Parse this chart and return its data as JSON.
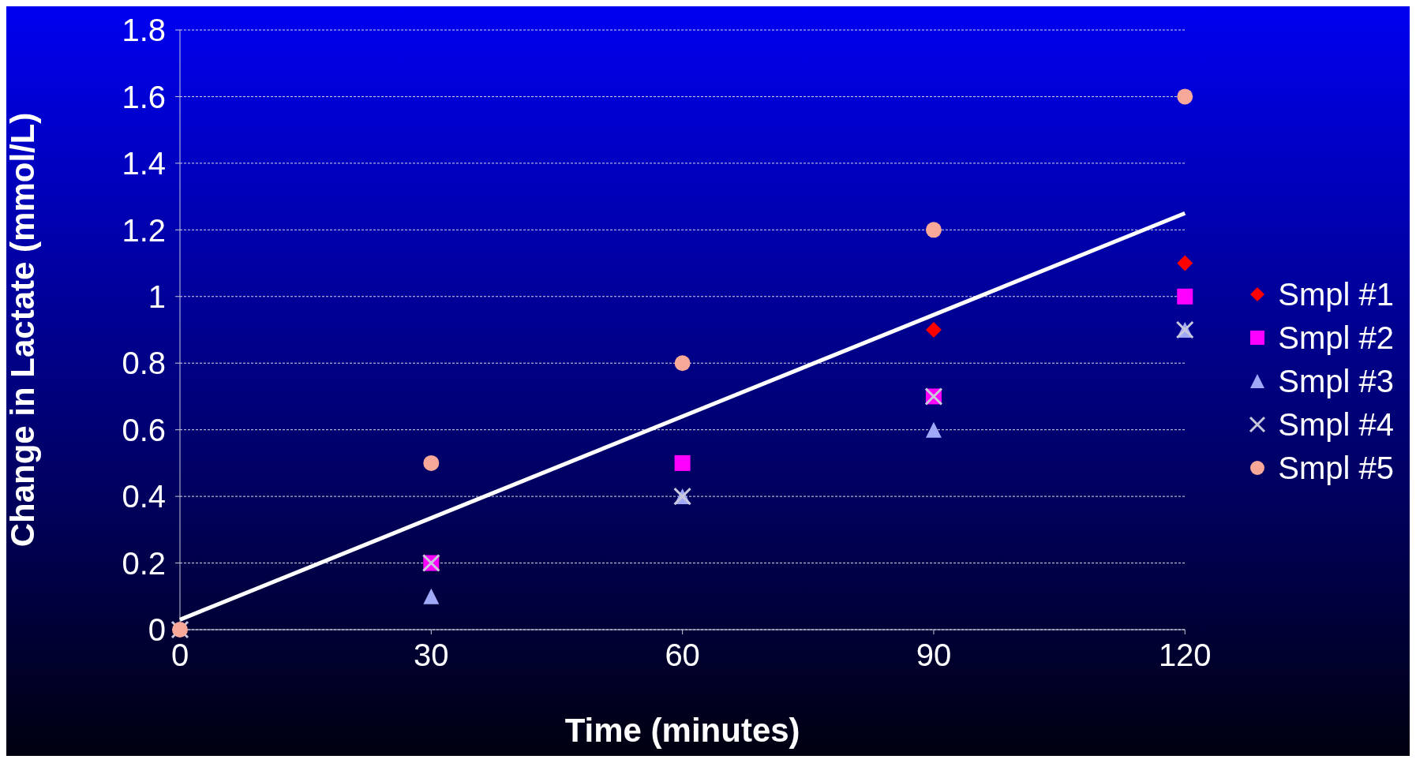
{
  "chart_data": {
    "type": "scatter",
    "xlabel": "Time (minutes)",
    "ylabel": "Change in Lactate (mmol/L)",
    "xlim": [
      0,
      120
    ],
    "xticks": [
      0,
      30,
      60,
      90,
      120
    ],
    "ylim": [
      0,
      1.8
    ],
    "yticks": [
      0,
      0.2,
      0.4,
      0.6,
      0.8,
      1,
      1.2,
      1.4,
      1.6,
      1.8
    ],
    "grid": "y",
    "legend": "right",
    "x": [
      0,
      30,
      60,
      90,
      120
    ],
    "series": [
      {
        "name": "Smpl #1",
        "color": "#ff0000",
        "marker": "diamond",
        "values": [
          null,
          null,
          null,
          0.9,
          1.1
        ]
      },
      {
        "name": "Smpl #2",
        "color": "#ff00ff",
        "marker": "square",
        "values": [
          null,
          0.2,
          0.5,
          0.7,
          1.0
        ]
      },
      {
        "name": "Smpl #3",
        "color": "#a0a8f8",
        "marker": "triangle",
        "values": [
          null,
          0.1,
          0.4,
          0.6,
          0.9
        ]
      },
      {
        "name": "Smpl #4",
        "color": "#c8c8dc",
        "marker": "cross",
        "values": [
          0,
          0.2,
          0.4,
          0.7,
          0.9
        ]
      },
      {
        "name": "Smpl #5",
        "color": "#f8a898",
        "marker": "circle",
        "values": [
          0,
          0.5,
          0.8,
          1.2,
          1.6
        ]
      },
      {
        "type": "line",
        "color": "#ffffff",
        "x": [
          0,
          120
        ],
        "values": [
          0.03,
          1.25
        ]
      }
    ]
  }
}
